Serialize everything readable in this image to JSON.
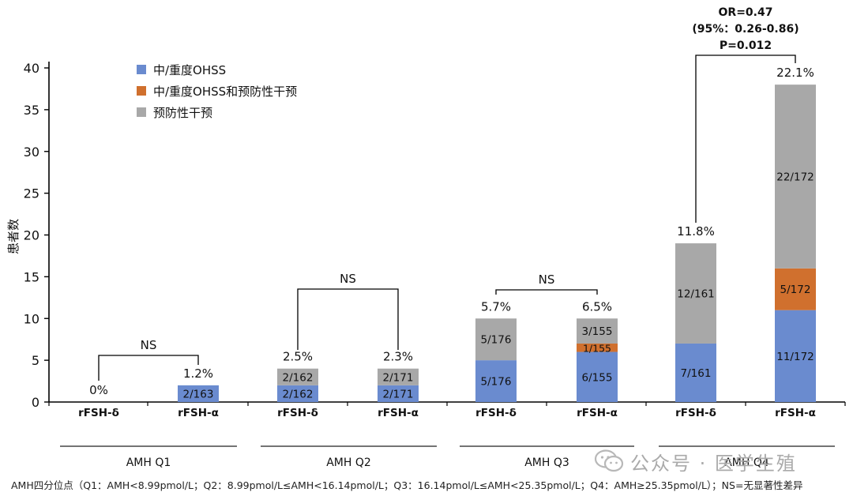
{
  "chart_data": {
    "type": "bar",
    "stacked": true,
    "ylabel": "患者数",
    "ylim": [
      0,
      40
    ],
    "yticks": [
      0,
      5,
      10,
      15,
      20,
      25,
      30,
      35,
      40
    ],
    "grid": false,
    "legend_position": "top-left",
    "series": [
      {
        "name": "中/重度OHSS",
        "color": "#6a8bcf"
      },
      {
        "name": "中/重度OHSS和预防性干预",
        "color": "#d0702e"
      },
      {
        "name": "预防性干预",
        "color": "#a8a8a8"
      }
    ],
    "categories": [
      "rFSH-δ",
      "rFSH-α",
      "rFSH-δ",
      "rFSH-α",
      "rFSH-δ",
      "rFSH-α",
      "rFSH-δ",
      "rFSH-α"
    ],
    "groups": [
      {
        "label": "AMH Q1",
        "comparison": [
          "NS"
        ]
      },
      {
        "label": "AMH Q2",
        "comparison": [
          "NS"
        ]
      },
      {
        "label": "AMH Q3",
        "comparison": [
          "NS"
        ]
      },
      {
        "label": "AMH Q4",
        "comparison": [
          "OR=0.47",
          "(95%：0.26-0.86)",
          "P=0.012"
        ]
      }
    ],
    "bars": [
      {
        "group": 0,
        "category": "rFSH-δ",
        "total_label": "0%",
        "segments": []
      },
      {
        "group": 0,
        "category": "rFSH-α",
        "total_label": "1.2%",
        "segments": [
          {
            "series": 0,
            "value": 2,
            "label": "2/163"
          }
        ]
      },
      {
        "group": 1,
        "category": "rFSH-δ",
        "total_label": "2.5%",
        "segments": [
          {
            "series": 0,
            "value": 2,
            "label": "2/162"
          },
          {
            "series": 2,
            "value": 2,
            "label": "2/162"
          }
        ]
      },
      {
        "group": 1,
        "category": "rFSH-α",
        "total_label": "2.3%",
        "segments": [
          {
            "series": 0,
            "value": 2,
            "label": "2/171"
          },
          {
            "series": 2,
            "value": 2,
            "label": "2/171"
          }
        ]
      },
      {
        "group": 2,
        "category": "rFSH-δ",
        "total_label": "5.7%",
        "segments": [
          {
            "series": 0,
            "value": 5,
            "label": "5/176"
          },
          {
            "series": 2,
            "value": 5,
            "label": "5/176"
          }
        ]
      },
      {
        "group": 2,
        "category": "rFSH-α",
        "total_label": "6.5%",
        "segments": [
          {
            "series": 0,
            "value": 6,
            "label": "6/155"
          },
          {
            "series": 1,
            "value": 1,
            "label": "1/155"
          },
          {
            "series": 2,
            "value": 3,
            "label": "3/155"
          }
        ]
      },
      {
        "group": 3,
        "category": "rFSH-δ",
        "total_label": "11.8%",
        "segments": [
          {
            "series": 0,
            "value": 7,
            "label": "7/161"
          },
          {
            "series": 2,
            "value": 12,
            "label": "12/161"
          }
        ]
      },
      {
        "group": 3,
        "category": "rFSH-α",
        "total_label": "22.1%",
        "segments": [
          {
            "series": 0,
            "value": 11,
            "label": "11/172"
          },
          {
            "series": 1,
            "value": 5,
            "label": "5/172"
          },
          {
            "series": 2,
            "value": 22,
            "label": "22/172"
          }
        ]
      }
    ]
  },
  "footnote": "AMH四分位点（Q1：AMH<8.99pmol/L；Q2：8.99pmol/L≤AMH<16.14pmol/L；Q3：16.14pmol/L≤AMH<25.35pmol/L；Q4：AMH≥25.35pmol/L）；NS=无显著性差异",
  "watermark": {
    "text": "公众号 · 医学生殖",
    "icon": "wechat-icon"
  }
}
